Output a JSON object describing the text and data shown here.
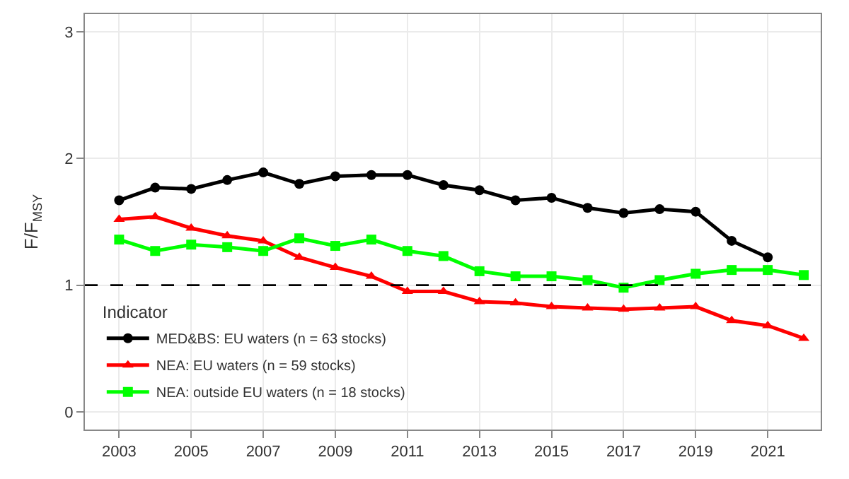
{
  "chart_data": {
    "type": "line",
    "ylabel": "F/F$_{MSY}$",
    "legend_title": "Indicator",
    "x": [
      2003,
      2004,
      2005,
      2006,
      2007,
      2008,
      2009,
      2010,
      2011,
      2012,
      2013,
      2014,
      2015,
      2016,
      2017,
      2018,
      2019,
      2020,
      2021,
      2022
    ],
    "series": [
      {
        "name": "MED&BS: EU waters (n = 63 stocks)",
        "color": "#000000",
        "marker": "circle",
        "values": [
          1.67,
          1.77,
          1.76,
          1.83,
          1.89,
          1.8,
          1.86,
          1.87,
          1.87,
          1.79,
          1.75,
          1.67,
          1.69,
          1.61,
          1.57,
          1.6,
          1.58,
          1.35,
          1.22,
          null
        ]
      },
      {
        "name": "NEA: EU waters (n = 59 stocks)",
        "color": "#ff0000",
        "marker": "triangle",
        "values": [
          1.52,
          1.54,
          1.45,
          1.39,
          1.35,
          1.22,
          1.14,
          1.07,
          0.95,
          0.95,
          0.87,
          0.86,
          0.83,
          0.82,
          0.81,
          0.82,
          0.83,
          0.72,
          0.68,
          0.58
        ]
      },
      {
        "name": "NEA: outside EU waters (n = 18 stocks)",
        "color": "#00ff00",
        "marker": "square",
        "values": [
          1.36,
          1.27,
          1.32,
          1.3,
          1.27,
          1.37,
          1.31,
          1.36,
          1.27,
          1.23,
          1.11,
          1.07,
          1.07,
          1.04,
          0.98,
          1.04,
          1.09,
          1.12,
          1.12,
          1.08
        ]
      }
    ],
    "xlim": [
      2002.05,
      2022.47
    ],
    "xticks": [
      2003,
      2005,
      2007,
      2009,
      2011,
      2013,
      2015,
      2017,
      2019,
      2021
    ],
    "ylim": [
      -0.14,
      3.14
    ],
    "yticks": [
      0,
      1,
      2,
      3
    ],
    "ref_lines": [
      {
        "axis": "y",
        "value": 1,
        "color": "#000000",
        "line_style": "dashed"
      }
    ],
    "grid": true,
    "legend": "bottom left",
    "line_style": "solid"
  }
}
